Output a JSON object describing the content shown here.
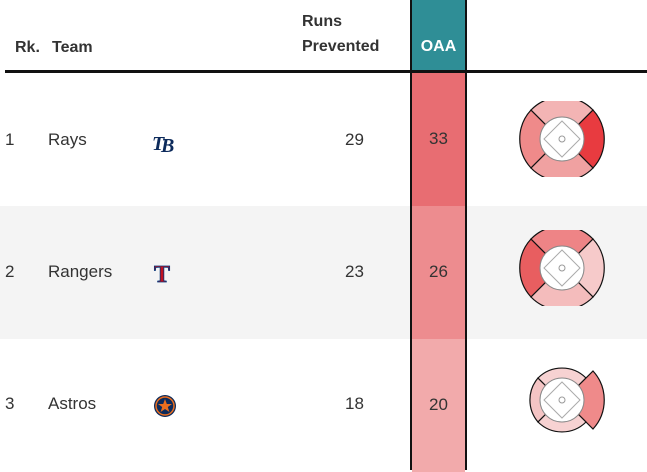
{
  "header": {
    "rank": "Rk.",
    "team": "Team",
    "runs_prevented": [
      "Runs",
      "Prevented"
    ],
    "oaa": "OAA"
  },
  "colors": {
    "oaa_header": "#2f8e96",
    "row_alt": "#f4f4f4",
    "rays_oaa": "#e86d72",
    "rangers_oaa": "#ed8c8f",
    "astros_oaa": "#f2aaab"
  },
  "rows": [
    {
      "rank": "1",
      "team": "Rays",
      "logo": "rays-logo-icon",
      "runs_prevented": "29",
      "oaa": "33"
    },
    {
      "rank": "2",
      "team": "Rangers",
      "logo": "rangers-logo-icon",
      "runs_prevented": "23",
      "oaa": "26"
    },
    {
      "rank": "3",
      "team": "Astros",
      "logo": "astros-logo-icon",
      "runs_prevented": "18",
      "oaa": "20"
    }
  ]
}
